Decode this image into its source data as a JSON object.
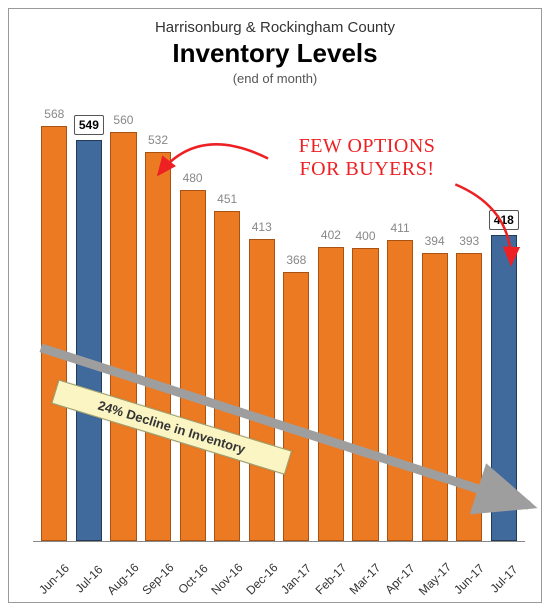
{
  "header": {
    "pretitle": "Harrisonburg & Rockingham County",
    "title": "Inventory Levels",
    "subtitle": "(end of month)"
  },
  "chart": {
    "type": "bar",
    "y_max": 600,
    "bar_width_pct": 70,
    "colors": {
      "orange_fill": "#ec7a23",
      "orange_border": "#a85213",
      "blue_fill": "#40699c",
      "blue_border": "#243b57",
      "value_label": "#888888",
      "boxed_value_label": "#000000",
      "axis": "#888888",
      "xlabel": "#333333",
      "background": "#ffffff"
    },
    "categories": [
      "Jun-16",
      "Jul-16",
      "Aug-16",
      "Sep-16",
      "Oct-16",
      "Nov-16",
      "Dec-16",
      "Jan-17",
      "Feb-17",
      "Mar-17",
      "Apr-17",
      "May-17",
      "Jun-17",
      "Jul-17"
    ],
    "values": [
      568,
      549,
      560,
      532,
      480,
      451,
      413,
      368,
      402,
      400,
      411,
      394,
      393,
      418
    ],
    "highlight_index": [
      1,
      13
    ],
    "annotation": {
      "text_line1": "FEW OPTIONS",
      "text_line2": "FOR BUYERS!",
      "color": "#ed2024",
      "fontsize": 20
    },
    "decline_banner": {
      "text": "24% Decline in Inventory",
      "bg": "#fbf5c4",
      "border": "#9b9b6b",
      "angle_deg": 17
    },
    "trend_arrow": {
      "color": "#9e9e9e",
      "width": 9,
      "from": [
        32,
        340
      ],
      "to": [
        530,
        500
      ]
    },
    "callout_arrows": {
      "color": "#ed2024",
      "width": 2.5,
      "left": {
        "from": [
          260,
          150
        ],
        "ctrl": [
          190,
          120
        ],
        "to": [
          150,
          170
        ]
      },
      "right": {
        "from": [
          448,
          176
        ],
        "ctrl": [
          500,
          200
        ],
        "to": [
          504,
          258
        ]
      }
    }
  }
}
